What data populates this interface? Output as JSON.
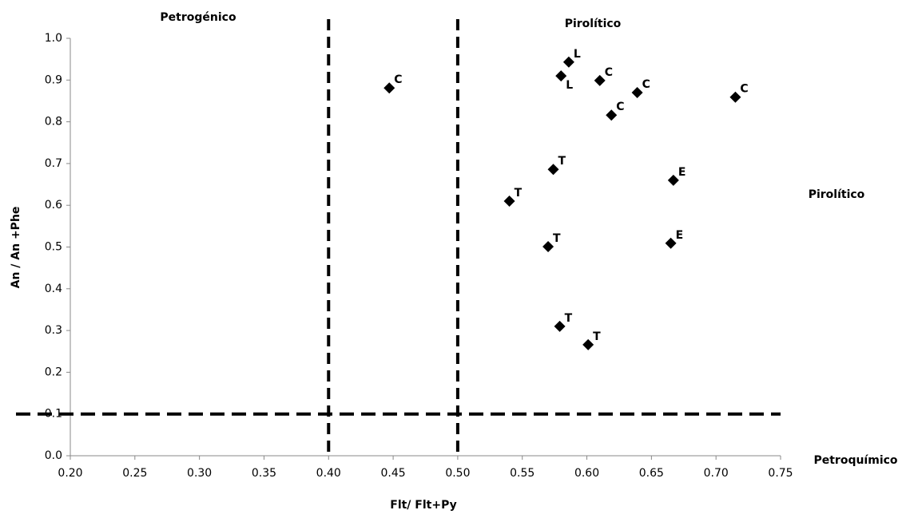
{
  "chart_data": {
    "type": "scatter",
    "x_label": "Flt/ Flt+Py",
    "y_label": "An / An +Phe",
    "annotations": [
      "Petrogénico",
      "Pirolítico",
      "Pirolítico",
      "Petroquímico"
    ],
    "series": [
      {
        "color": "#000000",
        "x": [
          0.447,
          0.586,
          0.58,
          0.61,
          0.639,
          0.619,
          0.715,
          0.574,
          0.667,
          0.54,
          0.57,
          0.665,
          0.579,
          0.601
        ],
        "values": [
          0.881,
          0.943,
          0.91,
          0.899,
          0.87,
          0.816,
          0.859,
          0.686,
          0.66,
          0.61,
          0.501,
          0.509,
          0.31,
          0.266
        ],
        "labels": [
          "C",
          "L",
          "L",
          "C",
          "C",
          "C",
          "C",
          "T",
          "E",
          "T",
          "T",
          "E",
          "T",
          "T"
        ]
      }
    ],
    "reference_lines": {
      "x": [
        0.4,
        0.5
      ],
      "y": [
        0.1
      ]
    },
    "xlim": [
      0.2,
      0.75
    ],
    "xticks": [
      {
        "value": 0.2,
        "label": "0.20"
      },
      0.25,
      {
        "value": 0.3,
        "label": "0.30"
      },
      0.35,
      {
        "value": 0.4,
        "label": "0.40"
      },
      0.45,
      {
        "value": 0.5,
        "label": "0.50"
      },
      0.55,
      {
        "value": 0.6,
        "label": "0.60"
      },
      0.65,
      {
        "value": 0.7,
        "label": "0.70"
      },
      0.75
    ],
    "ylim": [
      0,
      1
    ],
    "yticks": [
      {
        "value": 0,
        "label": "0.0"
      },
      0.1,
      0.2,
      0.3,
      0.4,
      0.5,
      0.6,
      0.7,
      0.8,
      0.9,
      {
        "value": 1,
        "label": "1.0"
      }
    ],
    "grid": false
  }
}
